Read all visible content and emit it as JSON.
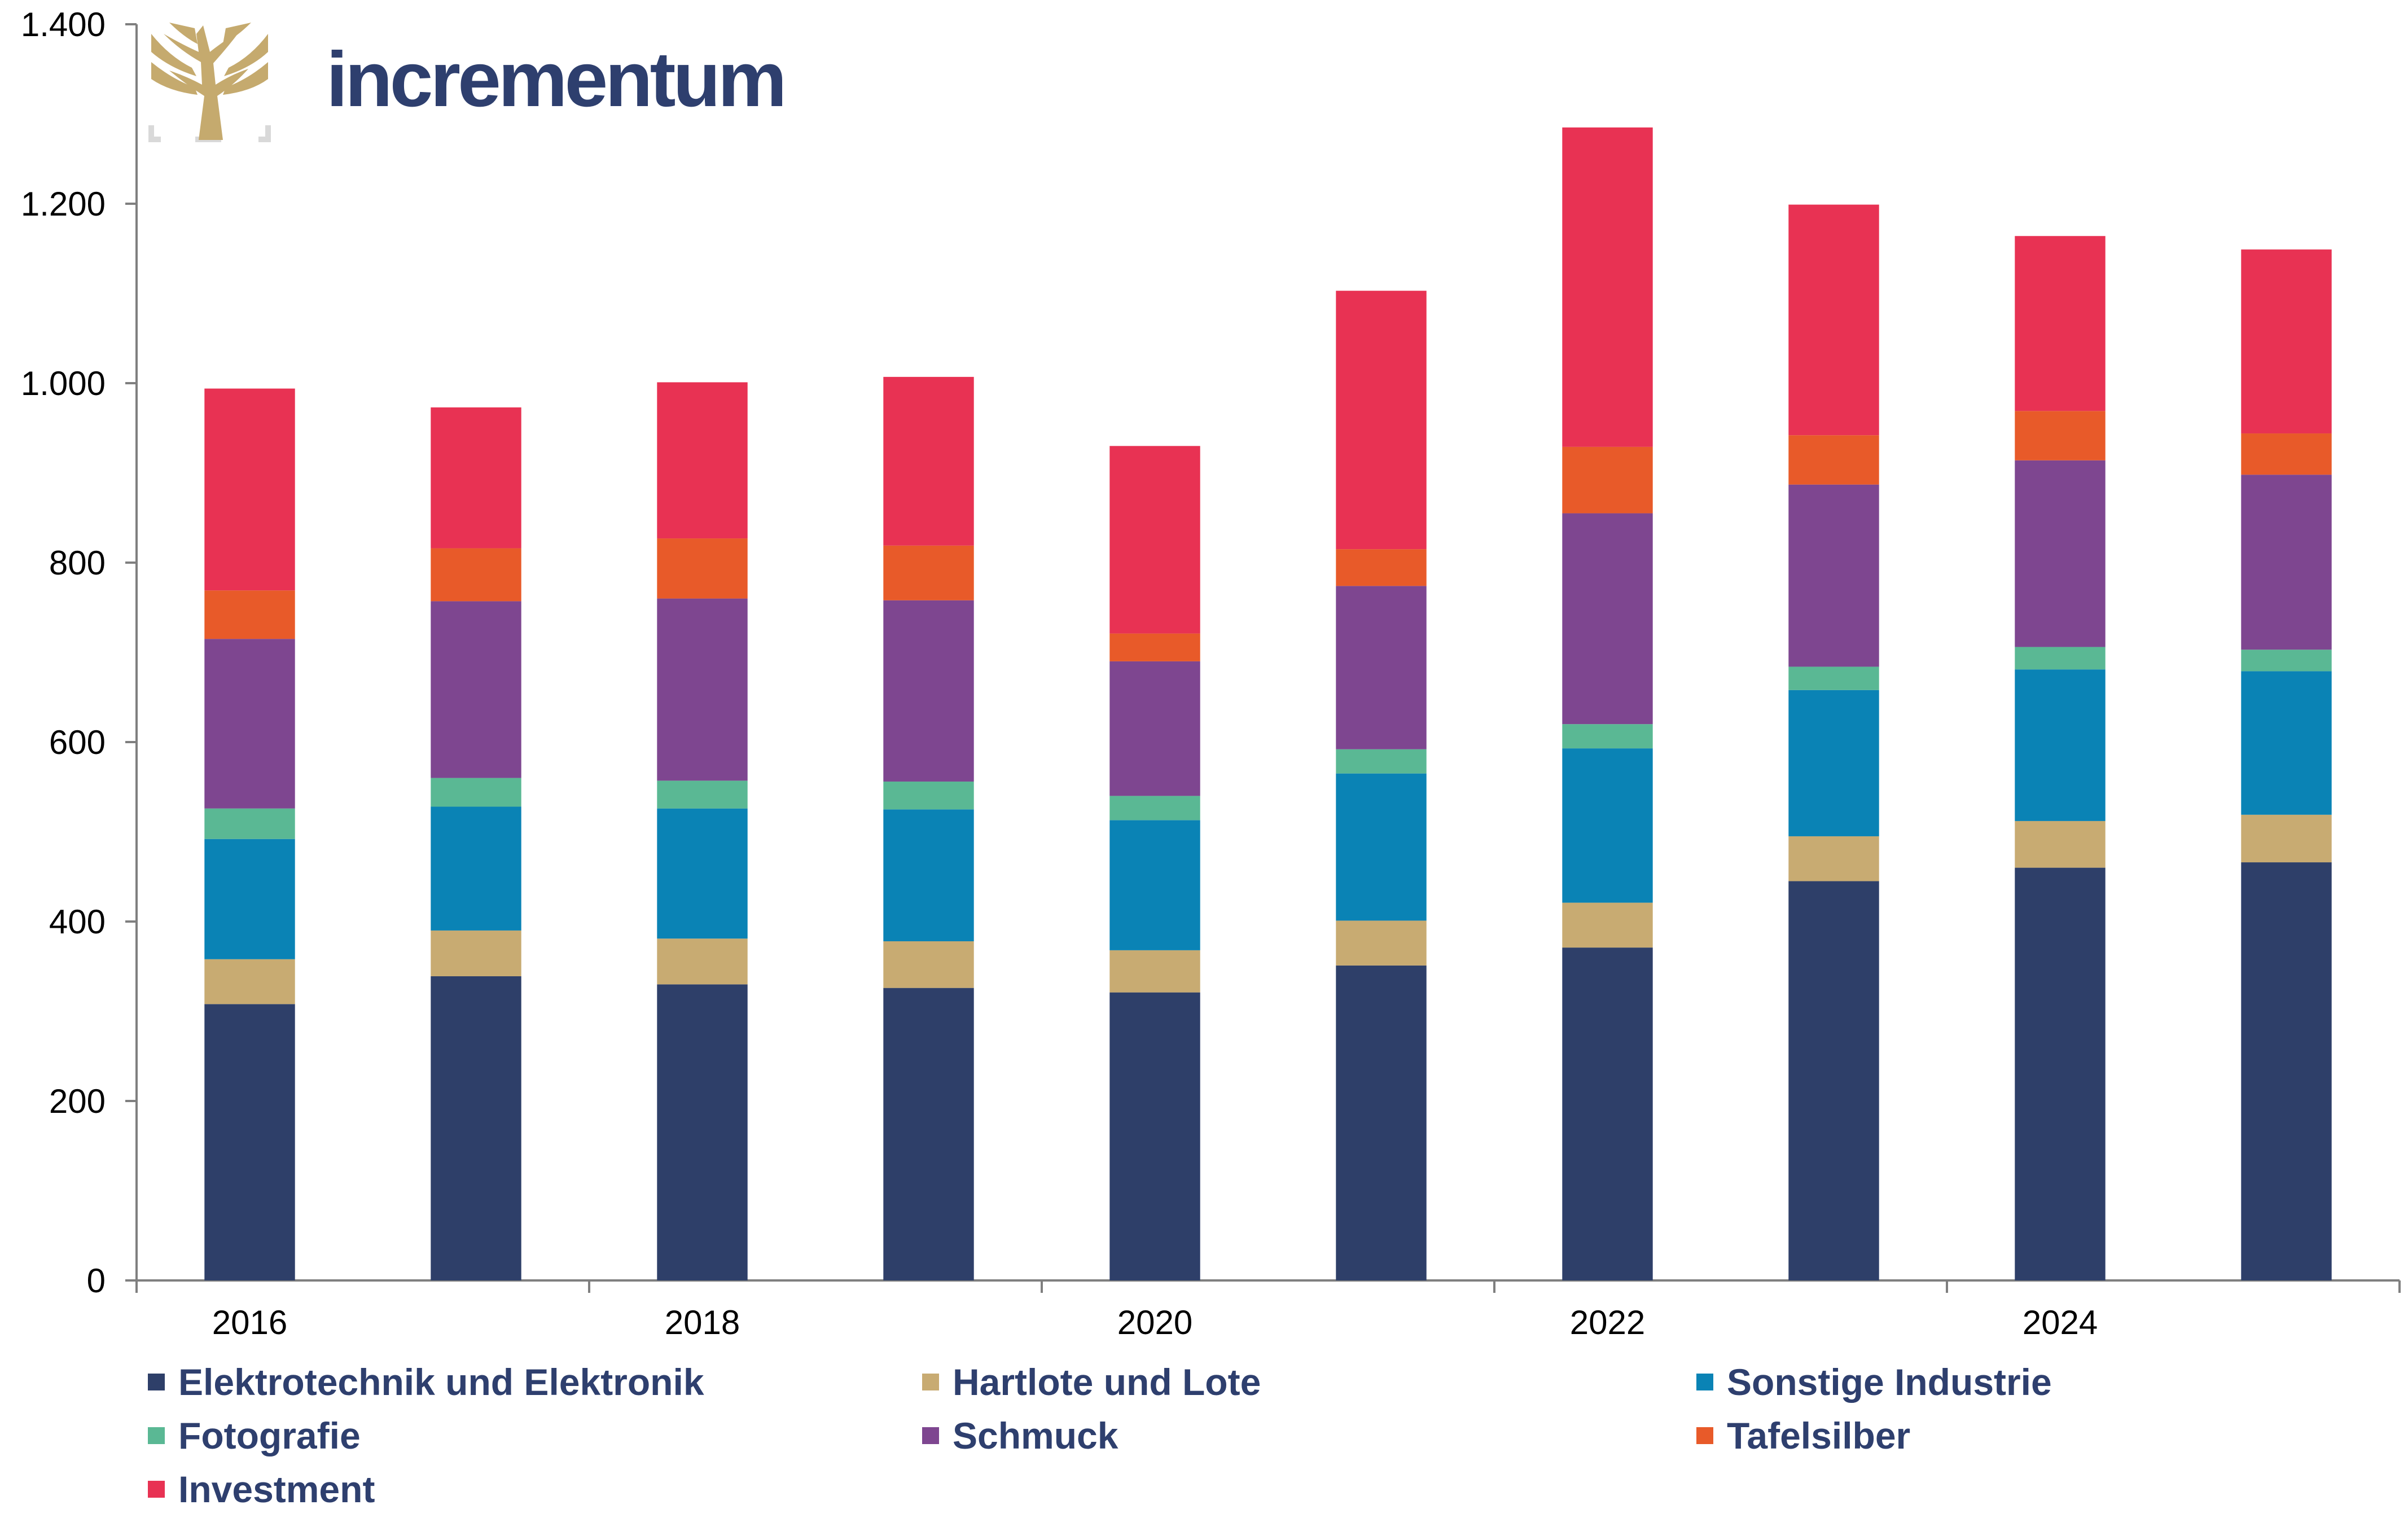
{
  "brand": {
    "name": "incrementum"
  },
  "chart_data": {
    "type": "bar",
    "stacked": true,
    "categories": [
      "2016",
      "2017",
      "2018",
      "2019",
      "2020",
      "2021",
      "2022",
      "2023",
      "2024",
      "2025"
    ],
    "x_tick_labels": [
      "2016",
      "",
      "2018",
      "",
      "2020",
      "",
      "2022",
      "",
      "2024",
      ""
    ],
    "ylim": [
      0,
      1400
    ],
    "yticks": [
      0,
      200,
      400,
      600,
      800,
      1000,
      1200,
      1400
    ],
    "ytick_labels": [
      "0",
      "200",
      "400",
      "600",
      "800",
      "1.000",
      "1.200",
      "1.400"
    ],
    "grid": false,
    "legend_position": "bottom",
    "series": [
      {
        "name": "Elektrotechnik und Elektronik",
        "color": "#2e3f69",
        "values": [
          308,
          339,
          330,
          326,
          321,
          351,
          371,
          445,
          460,
          466
        ]
      },
      {
        "name": "Hartlote und Lote",
        "color": "#c8ab72",
        "values": [
          50,
          51,
          51,
          52,
          47,
          50,
          50,
          50,
          52,
          53
        ]
      },
      {
        "name": "Sonstige Industrie",
        "color": "#0a83b5",
        "values": [
          134,
          138,
          145,
          147,
          145,
          164,
          172,
          163,
          169,
          160
        ]
      },
      {
        "name": "Fotografie",
        "color": "#5ab894",
        "values": [
          34,
          32,
          31,
          31,
          27,
          27,
          27,
          26,
          25,
          24
        ]
      },
      {
        "name": "Schmuck",
        "color": "#7e4690",
        "values": [
          189,
          197,
          203,
          202,
          150,
          182,
          235,
          203,
          208,
          195
        ]
      },
      {
        "name": "Tafelsilber",
        "color": "#e85a29",
        "values": [
          54,
          59,
          67,
          61,
          31,
          41,
          74,
          55,
          55,
          46
        ]
      },
      {
        "name": "Investment",
        "color": "#e83253",
        "values": [
          225,
          157,
          174,
          188,
          209,
          288,
          356,
          257,
          195,
          205
        ]
      }
    ]
  }
}
